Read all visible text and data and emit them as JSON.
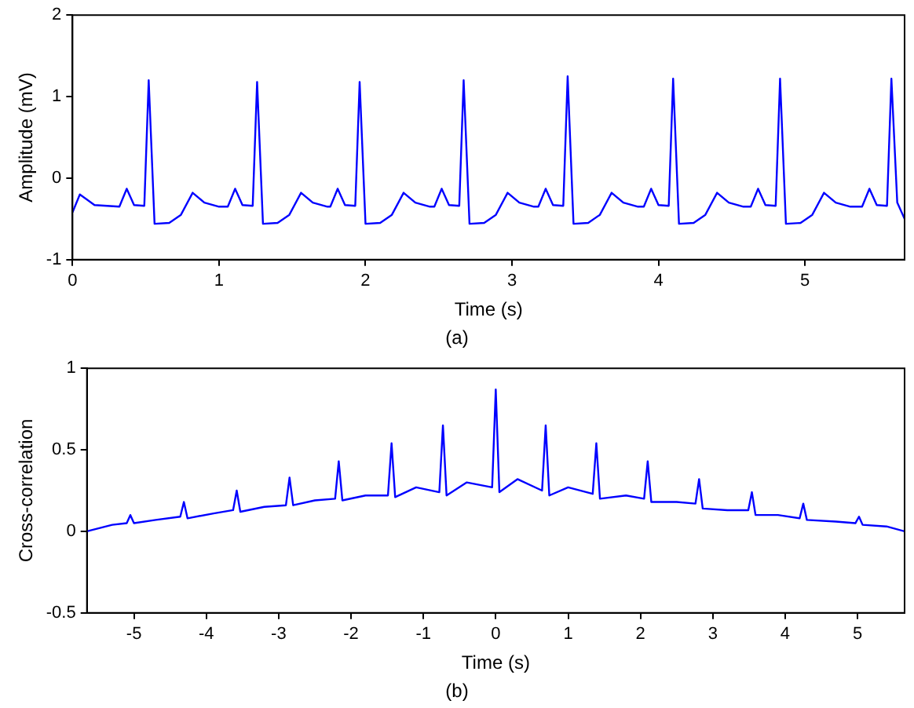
{
  "chart_data": [
    {
      "type": "line",
      "xlabel": "Time (s)",
      "ylabel": "Amplitude (mV)",
      "annotations": [
        "(a)"
      ],
      "xlim": [
        0,
        5.68
      ],
      "xticks": [
        0,
        1,
        2,
        3,
        4,
        5
      ],
      "ylim": [
        -1,
        2
      ],
      "yticks": [
        -1,
        0,
        1,
        2
      ],
      "grid": false,
      "legend": false,
      "marker": "none",
      "line_style": "solid",
      "series": [
        {
          "color": "#0000ff",
          "x": [
            0,
            0.05,
            0.15,
            0.32,
            0.37,
            0.42,
            0.49,
            0.52,
            0.56,
            0.66,
            0.74,
            0.82,
            0.9,
            1.0,
            1.06,
            1.11,
            1.16,
            1.23,
            1.26,
            1.3,
            1.4,
            1.48,
            1.56,
            1.64,
            1.74,
            1.76,
            1.81,
            1.86,
            1.93,
            1.96,
            2.0,
            2.1,
            2.18,
            2.26,
            2.34,
            2.44,
            2.47,
            2.52,
            2.57,
            2.64,
            2.67,
            2.71,
            2.81,
            2.89,
            2.97,
            3.05,
            3.15,
            3.18,
            3.23,
            3.28,
            3.35,
            3.38,
            3.42,
            3.52,
            3.6,
            3.68,
            3.76,
            3.86,
            3.9,
            3.95,
            4.0,
            4.07,
            4.1,
            4.14,
            4.24,
            4.32,
            4.4,
            4.48,
            4.58,
            4.63,
            4.68,
            4.73,
            4.8,
            4.83,
            4.87,
            4.97,
            5.05,
            5.13,
            5.21,
            5.31,
            5.39,
            5.44,
            5.49,
            5.56,
            5.59,
            5.63,
            5.68
          ],
          "values": [
            -0.42,
            -0.2,
            -0.33,
            -0.35,
            -0.13,
            -0.33,
            -0.34,
            1.2,
            -0.56,
            -0.55,
            -0.45,
            -0.18,
            -0.3,
            -0.35,
            -0.35,
            -0.13,
            -0.33,
            -0.34,
            1.18,
            -0.56,
            -0.55,
            -0.45,
            -0.18,
            -0.3,
            -0.35,
            -0.35,
            -0.13,
            -0.33,
            -0.34,
            1.18,
            -0.56,
            -0.55,
            -0.45,
            -0.18,
            -0.3,
            -0.35,
            -0.35,
            -0.13,
            -0.33,
            -0.34,
            1.2,
            -0.56,
            -0.55,
            -0.45,
            -0.18,
            -0.3,
            -0.35,
            -0.35,
            -0.13,
            -0.33,
            -0.34,
            1.25,
            -0.56,
            -0.55,
            -0.45,
            -0.18,
            -0.3,
            -0.35,
            -0.35,
            -0.13,
            -0.33,
            -0.34,
            1.22,
            -0.56,
            -0.55,
            -0.45,
            -0.18,
            -0.3,
            -0.35,
            -0.35,
            -0.13,
            -0.33,
            -0.34,
            1.22,
            -0.56,
            -0.55,
            -0.45,
            -0.18,
            -0.3,
            -0.35,
            -0.35,
            -0.13,
            -0.33,
            -0.34,
            1.22,
            -0.3,
            -0.5
          ]
        }
      ]
    },
    {
      "type": "line",
      "xlabel": "Time (s)",
      "ylabel": "Cross-correlation",
      "annotations": [
        "(b)"
      ],
      "xlim": [
        -5.65,
        5.65
      ],
      "xticks": [
        -5,
        -4,
        -3,
        -2,
        -1,
        0,
        1,
        2,
        3,
        4,
        5
      ],
      "ylim": [
        -0.5,
        1
      ],
      "yticks": [
        -0.5,
        0,
        0.5,
        1
      ],
      "grid": false,
      "legend": false,
      "marker": "none",
      "line_style": "solid",
      "series": [
        {
          "color": "#0000ff",
          "x": [
            -5.65,
            -5.3,
            -5.1,
            -5.05,
            -5.0,
            -4.7,
            -4.36,
            -4.31,
            -4.26,
            -3.9,
            -3.63,
            -3.58,
            -3.53,
            -3.2,
            -2.9,
            -2.85,
            -2.8,
            -2.5,
            -2.22,
            -2.17,
            -2.12,
            -1.8,
            -1.49,
            -1.44,
            -1.39,
            -1.1,
            -0.78,
            -0.73,
            -0.68,
            -0.4,
            -0.05,
            0,
            0.05,
            0.3,
            0.64,
            0.69,
            0.74,
            1.0,
            1.34,
            1.39,
            1.44,
            1.8,
            2.05,
            2.1,
            2.15,
            2.5,
            2.76,
            2.81,
            2.86,
            3.2,
            3.49,
            3.54,
            3.59,
            3.9,
            4.2,
            4.25,
            4.3,
            4.7,
            4.97,
            5.02,
            5.07,
            5.4,
            5.65
          ],
          "values": [
            0.0,
            0.04,
            0.05,
            0.1,
            0.05,
            0.07,
            0.09,
            0.18,
            0.08,
            0.11,
            0.13,
            0.25,
            0.12,
            0.15,
            0.16,
            0.33,
            0.16,
            0.19,
            0.2,
            0.43,
            0.19,
            0.22,
            0.22,
            0.54,
            0.21,
            0.27,
            0.24,
            0.65,
            0.22,
            0.3,
            0.27,
            0.87,
            0.24,
            0.32,
            0.25,
            0.65,
            0.22,
            0.27,
            0.23,
            0.54,
            0.2,
            0.22,
            0.2,
            0.43,
            0.18,
            0.18,
            0.17,
            0.32,
            0.14,
            0.13,
            0.13,
            0.24,
            0.1,
            0.1,
            0.08,
            0.17,
            0.07,
            0.06,
            0.05,
            0.09,
            0.04,
            0.03,
            0.0
          ]
        }
      ]
    }
  ]
}
